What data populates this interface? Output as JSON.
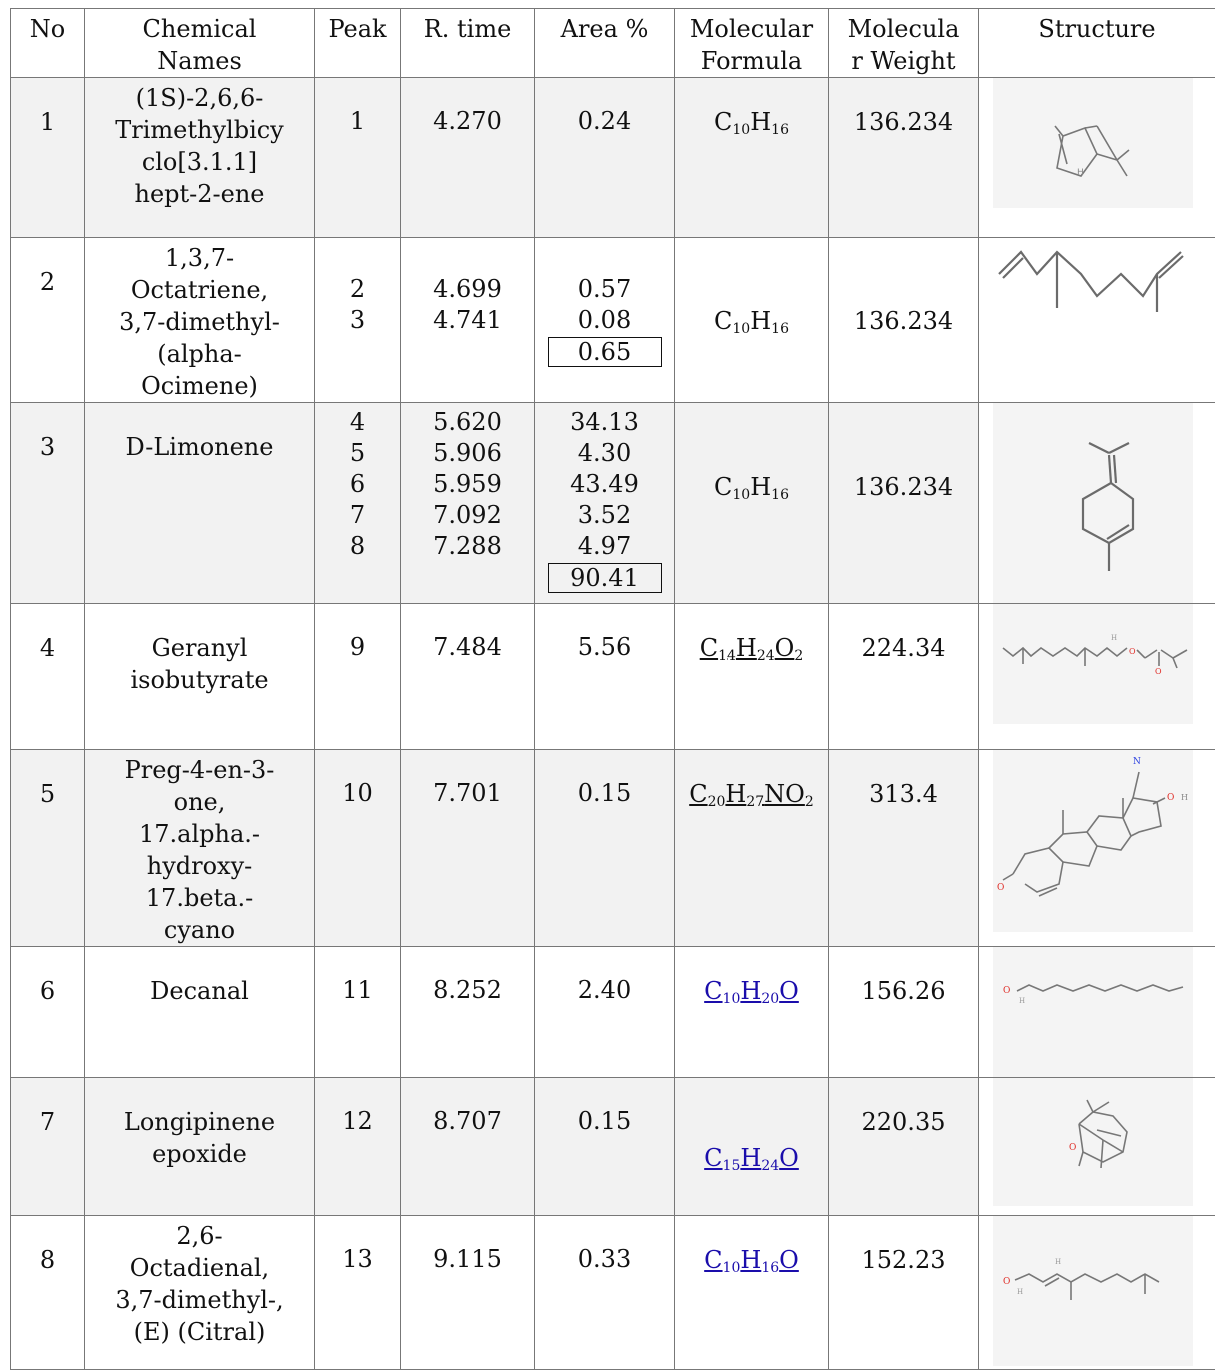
{
  "headers": {
    "no": "No",
    "name": "Chemical Names",
    "peak": "Peak",
    "rtime": "R. time",
    "area": "Area %",
    "formula": "Molecular Formula",
    "weight": "Molecula r Weight",
    "structure": "Structure"
  },
  "rows": [
    {
      "no": "1",
      "name": "(1S)-2,6,6-Trimethylbicyclo[3.1.1]hept-2-ene",
      "peaks": [
        "1"
      ],
      "times": [
        "4.270"
      ],
      "areas": [
        "0.24"
      ],
      "area_total": "",
      "formula": "C10H16",
      "weight": "136.234",
      "structure": "pinene-structure"
    },
    {
      "no": "2",
      "name": "1,3,7-Octatriene, 3,7-dimethyl- (alpha-Ocimene)",
      "peaks": [
        "2",
        "3"
      ],
      "times": [
        "4.699",
        "4.741"
      ],
      "areas": [
        "0.57",
        "0.08"
      ],
      "area_total": "0.65",
      "formula": "C10H16",
      "weight": "136.234",
      "structure": "ocimene-structure"
    },
    {
      "no": "3",
      "name": "D-Limonene",
      "peaks": [
        "4",
        "5",
        "6",
        "7",
        "8"
      ],
      "times": [
        "5.620",
        "5.906",
        "5.959",
        "7.092",
        "7.288"
      ],
      "areas": [
        "34.13",
        "4.30",
        "43.49",
        "3.52",
        "4.97"
      ],
      "area_total": "90.41",
      "formula": "C10H16",
      "weight": "136.234",
      "structure": "limonene-structure"
    },
    {
      "no": "4",
      "name": "Geranyl isobutyrate",
      "peaks": [
        "9"
      ],
      "times": [
        "7.484"
      ],
      "areas": [
        "5.56"
      ],
      "area_total": "",
      "formula": "C14H24O2",
      "weight": "224.34",
      "structure": "geranyl-isobutyrate-structure"
    },
    {
      "no": "5",
      "name": "Preg-4-en-3-one, 17.alpha.-hydroxy-17.beta.-cyano",
      "peaks": [
        "10"
      ],
      "times": [
        "7.701"
      ],
      "areas": [
        "0.15"
      ],
      "area_total": "",
      "formula": "C20H27NO2",
      "weight": "313.4",
      "structure": "pregnenone-structure"
    },
    {
      "no": "6",
      "name": "Decanal",
      "peaks": [
        "11"
      ],
      "times": [
        "8.252"
      ],
      "areas": [
        "2.40"
      ],
      "area_total": "",
      "formula": "C10H20O",
      "weight": "156.26",
      "structure": "decanal-structure"
    },
    {
      "no": "7",
      "name": "Longipinene epoxide",
      "peaks": [
        "12"
      ],
      "times": [
        "8.707"
      ],
      "areas": [
        "0.15"
      ],
      "area_total": "",
      "formula": "C15H24O",
      "weight": "220.35",
      "structure": "longipinene-epoxide-structure"
    },
    {
      "no": "8",
      "name": "2,6-Octadienal, 3,7-dimethyl-, (E) (Citral)",
      "peaks": [
        "13"
      ],
      "times": [
        "9.115"
      ],
      "areas": [
        "0.33"
      ],
      "area_total": "",
      "formula": "C10H16O",
      "weight": "152.23",
      "structure": "citral-structure"
    }
  ],
  "name_lines": [
    [
      "(1S)-2,6,6-",
      "Trimethylbicy",
      "clo[3.1.1]",
      "hept-2-ene"
    ],
    [
      "1,3,7-",
      "Octatriene,",
      "3,7-dimethyl-",
      "(alpha-",
      "Ocimene)"
    ],
    [
      "D-Limonene"
    ],
    [
      "Geranyl",
      "isobutyrate"
    ],
    [
      "Preg-4-en-3-",
      "one,",
      "17.alpha.-",
      "hydroxy-",
      "17.beta.-",
      "cyano"
    ],
    [
      "Decanal"
    ],
    [
      "Longipinene",
      "epoxide"
    ],
    [
      "2,6-",
      "Octadienal,",
      "3,7-dimethyl-,",
      "(E) (Citral)"
    ]
  ],
  "formula_parts": [
    [
      [
        "C",
        "10"
      ],
      [
        "H",
        "16"
      ]
    ],
    [
      [
        "C",
        "10"
      ],
      [
        "H",
        "16"
      ]
    ],
    [
      [
        "C",
        "10"
      ],
      [
        "H",
        "16"
      ]
    ],
    [
      [
        "C",
        "14"
      ],
      [
        "H",
        "24"
      ],
      [
        "O",
        "2"
      ]
    ],
    [
      [
        "C",
        "20"
      ],
      [
        "H",
        "27"
      ],
      [
        "NO",
        "2"
      ]
    ],
    [
      [
        "C",
        "10"
      ],
      [
        "H",
        "20"
      ],
      [
        "O",
        ""
      ]
    ],
    [
      [
        "C",
        "15"
      ],
      [
        "H",
        "24"
      ],
      [
        "O",
        ""
      ]
    ],
    [
      [
        "C",
        "10"
      ],
      [
        "H",
        "16"
      ],
      [
        "O",
        ""
      ]
    ]
  ],
  "atom_labels": {
    "h": "H",
    "o": "O",
    "n": "N",
    "oh": "O",
    "h2": "H"
  },
  "colors": {
    "band": "#f2f2f2",
    "link": "#1a0dab",
    "oxygen": "#e0302a",
    "nitrogen": "#2a3fe0"
  }
}
